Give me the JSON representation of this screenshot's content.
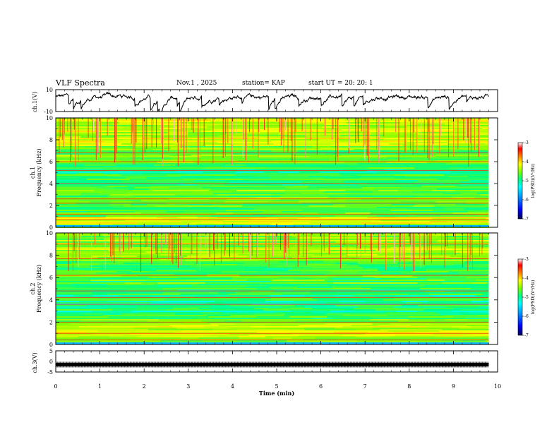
{
  "header": {
    "title": "VLF Spectra",
    "date": "Nov.1 , 2025",
    "station": "station= KAP",
    "start": "start UT = 20: 20: 1"
  },
  "chart_data": [
    {
      "type": "line",
      "panel": "ch1-waveform",
      "ylabel": "ch.1(V)",
      "ylim": [
        -10,
        10
      ],
      "yticks": [
        "10",
        "-10"
      ],
      "xlim": [
        0,
        10
      ],
      "x_end": 9.8,
      "mean_level": 3.5,
      "description_series": "raw voltage trace"
    },
    {
      "type": "heatmap",
      "panel": "ch1-spectrogram",
      "ylabel": "ch.1\nFrequency (kHz)",
      "ylabel_top": "ch.1",
      "ylabel_bottom": "Frequency (kHz)",
      "ylim": [
        0,
        10
      ],
      "yticks": [
        "0",
        "2",
        "4",
        "6",
        "8",
        "10"
      ],
      "xlim": [
        0,
        10
      ],
      "x_end": 9.8,
      "colorbar": {
        "label": "log(PSD)(V²/Hz)",
        "range": [
          -7,
          -3
        ],
        "ticks": [
          "-3",
          "-4",
          "-5",
          "-6",
          "-7"
        ]
      }
    },
    {
      "type": "heatmap",
      "panel": "ch2-spectrogram",
      "ylabel_top": "ch.2",
      "ylabel_bottom": "Frequency (kHz)",
      "ylim": [
        0,
        10
      ],
      "yticks": [
        "0",
        "2",
        "4",
        "6",
        "8",
        "10"
      ],
      "xlim": [
        0,
        10
      ],
      "x_end": 9.8,
      "colorbar": {
        "label": "log(PSD)(V²/Hz)",
        "range": [
          -7,
          -3
        ],
        "ticks": [
          "-3",
          "-4",
          "-5",
          "-6",
          "-7"
        ]
      }
    },
    {
      "type": "line",
      "panel": "ch3-waveform",
      "ylabel": "ch.3(V)",
      "ylim": [
        -5,
        5
      ],
      "yticks": [
        "5",
        "0",
        "-5"
      ],
      "xlim": [
        0,
        10
      ],
      "x_end": 9.8,
      "level": -1.5,
      "xlabel": "Time (min)",
      "xticks": [
        "0",
        "1",
        "2",
        "3",
        "4",
        "5",
        "6",
        "7",
        "8",
        "9",
        "10"
      ]
    }
  ],
  "colors": {
    "frame": "#000000",
    "trace": "#000000",
    "colormap": [
      "#000050",
      "#0000ff",
      "#00a0ff",
      "#00ffff",
      "#00ff80",
      "#80ff00",
      "#ffff00",
      "#ff8000",
      "#ff0000",
      "#ffffff"
    ]
  }
}
